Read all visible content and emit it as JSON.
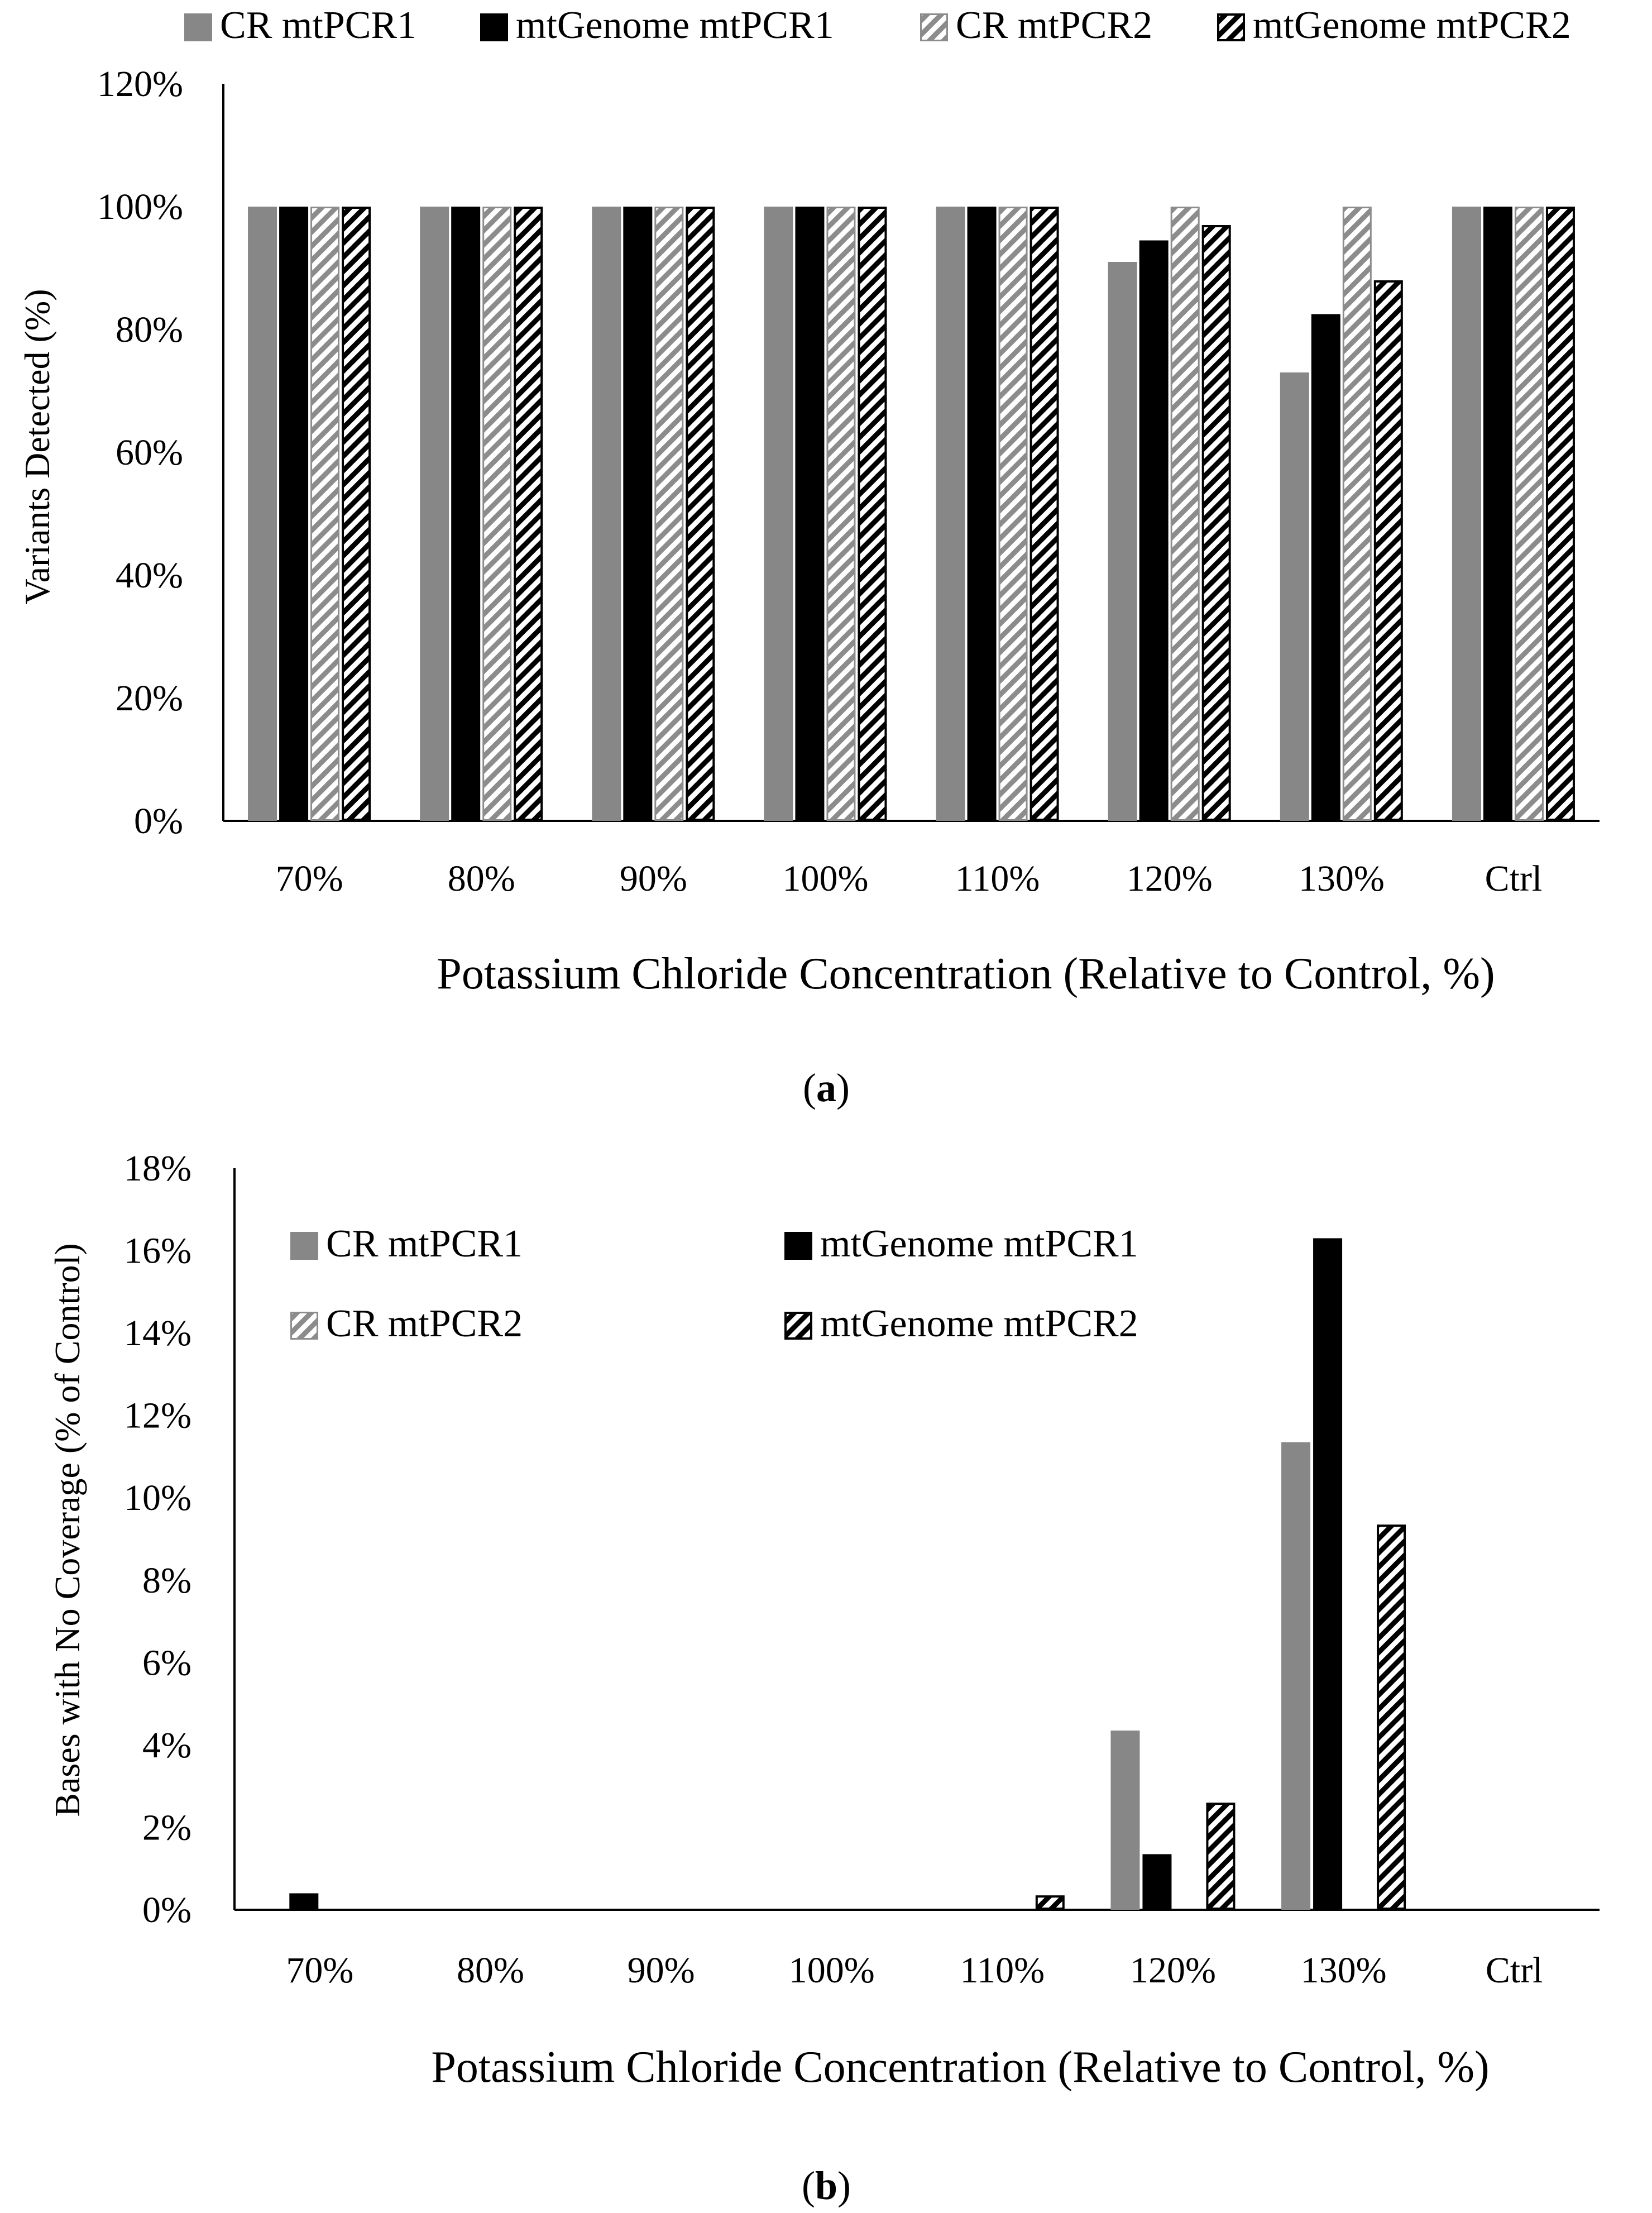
{
  "chart_data": [
    {
      "type": "bar",
      "panel_label": "a",
      "title": "",
      "xlabel": "Potassium Chloride Concentration (Relative to Control, %)",
      "ylabel": "Variants Detected (%)",
      "ylim": [
        0,
        120
      ],
      "yticks": [
        0,
        20,
        40,
        60,
        80,
        100,
        120
      ],
      "tick_suffix": "%",
      "legend_position": "top",
      "categories": [
        "70%",
        "80%",
        "90%",
        "100%",
        "110%",
        "120%",
        "130%",
        "Ctrl"
      ],
      "series": [
        {
          "name": "CR mtPCR1",
          "style": "gray",
          "values": [
            100,
            100,
            100,
            100,
            100,
            91,
            73,
            100
          ]
        },
        {
          "name": "mtGenome mtPCR1",
          "style": "black",
          "values": [
            100,
            100,
            100,
            100,
            100,
            94.5,
            82.5,
            100
          ]
        },
        {
          "name": "CR mtPCR2",
          "style": "gray-hatch",
          "values": [
            100,
            100,
            100,
            100,
            100,
            100,
            100,
            100
          ]
        },
        {
          "name": "mtGenome mtPCR2",
          "style": "black-hatch",
          "values": [
            100,
            100,
            100,
            100,
            100,
            97,
            88,
            100
          ]
        }
      ]
    },
    {
      "type": "bar",
      "panel_label": "b",
      "title": "",
      "xlabel": "Potassium Chloride Concentration (Relative to Control, %)",
      "ylabel": "Bases with No Coverage (% of Control)",
      "ylim": [
        0,
        18
      ],
      "yticks": [
        0,
        2,
        4,
        6,
        8,
        10,
        12,
        14,
        16,
        18
      ],
      "tick_suffix": "%",
      "legend_position": "top-left",
      "categories": [
        "70%",
        "80%",
        "90%",
        "100%",
        "110%",
        "120%",
        "130%",
        "Ctrl"
      ],
      "series": [
        {
          "name": "CR mtPCR1",
          "style": "gray",
          "values": [
            0,
            0,
            0,
            0,
            0,
            4.35,
            11.35,
            0
          ]
        },
        {
          "name": "mtGenome mtPCR1",
          "style": "black",
          "values": [
            0.4,
            0,
            0,
            0,
            0,
            1.35,
            16.3,
            0
          ]
        },
        {
          "name": "CR mtPCR2",
          "style": "gray-hatch",
          "values": [
            0,
            0,
            0,
            0,
            0,
            0,
            0,
            0
          ]
        },
        {
          "name": "mtGenome mtPCR2",
          "style": "black-hatch",
          "values": [
            0,
            0,
            0,
            0,
            0.35,
            2.6,
            9.35,
            0
          ]
        }
      ]
    }
  ]
}
